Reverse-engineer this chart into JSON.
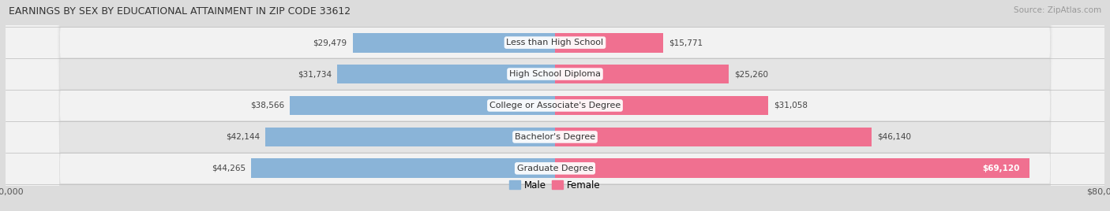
{
  "title": "EARNINGS BY SEX BY EDUCATIONAL ATTAINMENT IN ZIP CODE 33612",
  "source": "Source: ZipAtlas.com",
  "categories": [
    "Less than High School",
    "High School Diploma",
    "College or Associate's Degree",
    "Bachelor's Degree",
    "Graduate Degree"
  ],
  "male_values": [
    29479,
    31734,
    38566,
    42144,
    44265
  ],
  "female_values": [
    15771,
    25260,
    31058,
    46140,
    69120
  ],
  "male_color": "#8ab4d8",
  "female_color": "#f07090",
  "row_bg_light": "#f2f2f2",
  "row_bg_dark": "#e4e4e4",
  "x_max": 80000,
  "x_min": -80000,
  "bar_height": 0.62,
  "figsize": [
    14.06,
    2.68
  ],
  "dpi": 100,
  "title_fontsize": 9,
  "label_fontsize": 7.5,
  "cat_fontsize": 8
}
